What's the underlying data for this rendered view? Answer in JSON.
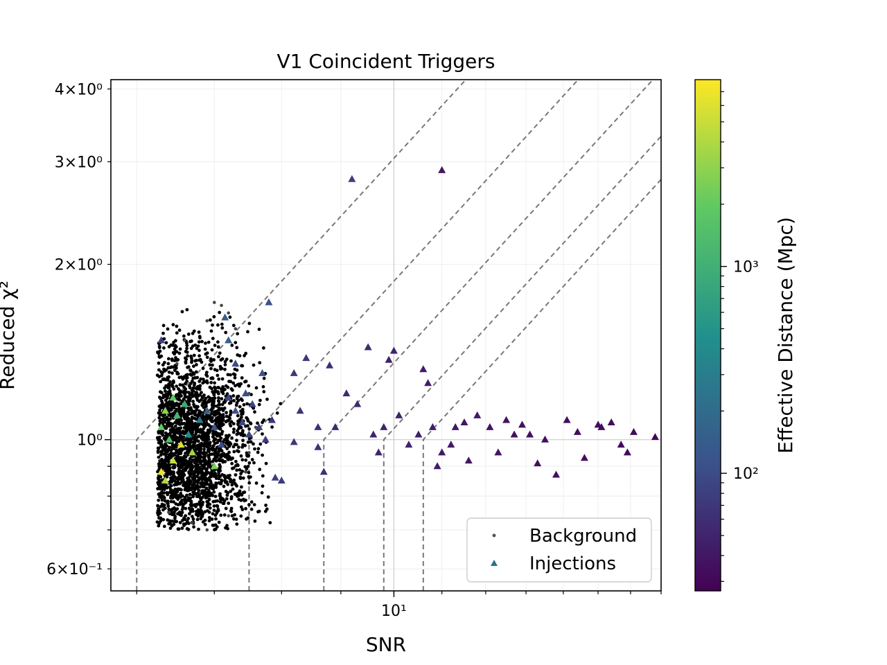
{
  "chart_data": {
    "type": "scatter",
    "title": "V1 Coincident Triggers",
    "xlabel": "SNR",
    "ylabel": "Reduced χ²",
    "xscale": "log",
    "yscale": "log",
    "xlim": [
      5.7,
      17.0
    ],
    "ylim": [
      0.55,
      4.15
    ],
    "grid": true,
    "x_ticks": [
      {
        "value": 10,
        "label": "10¹"
      }
    ],
    "y_ticks": [
      {
        "value": 0.6,
        "label": "6×10⁻¹"
      },
      {
        "value": 1,
        "label": "10⁰"
      },
      {
        "value": 2,
        "label": "2×10⁰"
      },
      {
        "value": 3,
        "label": "3×10⁰"
      },
      {
        "value": 4,
        "label": "4×10⁰"
      }
    ],
    "colorbar": {
      "label": "Effective Distance (Mpc)",
      "scale": "log",
      "range": [
        27,
        8000
      ],
      "colormap": "viridis",
      "ticks": [
        {
          "value": 100,
          "label": "10²"
        },
        {
          "value": 1000,
          "label": "10³"
        }
      ]
    },
    "legend": {
      "position": "lower-right",
      "entries": [
        {
          "label": "Background",
          "marker": "dot"
        },
        {
          "label": "Injections",
          "marker": "triangle"
        }
      ]
    },
    "contours": {
      "style": "dashed",
      "color": "#777777",
      "threshold_snr": [
        6,
        7.5,
        8.7,
        9.8,
        10.6
      ]
    },
    "series": [
      {
        "name": "Background",
        "marker": "dot",
        "color": "#000000",
        "region": {
          "snr_range": [
            6.25,
            7.6
          ],
          "chisq_range": [
            0.7,
            1.75
          ]
        },
        "points": [
          [
            6.5,
            1.35
          ],
          [
            6.6,
            1.48
          ],
          [
            6.9,
            1.6
          ],
          [
            7.0,
            1.72
          ],
          [
            7.1,
            1.7
          ],
          [
            7.2,
            1.65
          ],
          [
            7.3,
            1.55
          ],
          [
            7.5,
            1.2
          ],
          [
            7.5,
            0.95
          ],
          [
            7.45,
            0.88
          ],
          [
            7.6,
            1.05
          ],
          [
            6.7,
            0.72
          ],
          [
            6.9,
            0.7
          ],
          [
            6.4,
            0.75
          ],
          [
            7.2,
            0.74
          ]
        ]
      },
      {
        "name": "Injections",
        "marker": "triangle",
        "color_by": "effective_distance",
        "points": [
          [
            6.3,
            1.48,
            80
          ],
          [
            6.3,
            1.05,
            2000
          ],
          [
            6.35,
            1.12,
            3000
          ],
          [
            6.4,
            1.0,
            1500
          ],
          [
            6.45,
            0.92,
            5000
          ],
          [
            6.3,
            0.88,
            7000
          ],
          [
            6.35,
            0.85,
            4000
          ],
          [
            6.5,
            1.1,
            1200
          ],
          [
            6.55,
            0.98,
            6000
          ],
          [
            6.6,
            1.15,
            900
          ],
          [
            6.65,
            1.02,
            400
          ],
          [
            6.7,
            0.95,
            3500
          ],
          [
            6.8,
            1.08,
            250
          ],
          [
            6.9,
            1.12,
            150
          ],
          [
            7.0,
            1.05,
            120
          ],
          [
            7.1,
            0.98,
            100
          ],
          [
            7.2,
            1.18,
            90
          ],
          [
            7.3,
            1.12,
            110
          ],
          [
            7.4,
            1.07,
            95
          ],
          [
            7.5,
            1.02,
            85
          ],
          [
            7.2,
            1.48,
            150
          ],
          [
            7.15,
            1.62,
            140
          ],
          [
            7.8,
            1.72,
            120
          ],
          [
            7.7,
            1.3,
            110
          ],
          [
            7.3,
            1.35,
            100
          ],
          [
            7.45,
            1.2,
            105
          ],
          [
            7.55,
            1.15,
            90
          ],
          [
            7.65,
            1.05,
            80
          ],
          [
            7.75,
            1.0,
            75
          ],
          [
            7.85,
            1.08,
            70
          ],
          [
            7.9,
            0.86,
            80
          ],
          [
            8.0,
            0.85,
            75
          ],
          [
            8.2,
            0.99,
            70
          ],
          [
            8.3,
            1.12,
            65
          ],
          [
            8.2,
            1.3,
            70
          ],
          [
            8.4,
            1.38,
            70
          ],
          [
            9.2,
            2.8,
            80
          ],
          [
            8.6,
            1.05,
            60
          ],
          [
            8.8,
            1.34,
            60
          ],
          [
            8.7,
            0.88,
            60
          ],
          [
            8.6,
            0.97,
            65
          ],
          [
            8.9,
            1.05,
            55
          ],
          [
            9.1,
            1.2,
            55
          ],
          [
            9.3,
            1.15,
            55
          ],
          [
            9.5,
            1.44,
            55
          ],
          [
            9.6,
            1.02,
            50
          ],
          [
            9.7,
            0.95,
            50
          ],
          [
            9.8,
            1.05,
            48
          ],
          [
            9.9,
            1.37,
            48
          ],
          [
            10.0,
            1.42,
            48
          ],
          [
            10.1,
            1.1,
            50
          ],
          [
            10.3,
            0.98,
            50
          ],
          [
            10.5,
            1.02,
            45
          ],
          [
            10.6,
            1.32,
            45
          ],
          [
            10.7,
            1.25,
            45
          ],
          [
            10.8,
            1.05,
            45
          ],
          [
            10.9,
            0.9,
            45
          ],
          [
            11.0,
            0.95,
            42
          ],
          [
            11.2,
            0.98,
            42
          ],
          [
            11.0,
            2.9,
            40
          ],
          [
            11.3,
            1.05,
            42
          ],
          [
            11.5,
            1.07,
            40
          ],
          [
            11.6,
            0.92,
            40
          ],
          [
            11.8,
            1.1,
            40
          ],
          [
            12.1,
            1.05,
            38
          ],
          [
            12.3,
            0.95,
            38
          ],
          [
            12.5,
            1.08,
            38
          ],
          [
            12.7,
            1.02,
            36
          ],
          [
            12.9,
            1.06,
            36
          ],
          [
            13.1,
            1.02,
            36
          ],
          [
            13.3,
            0.91,
            35
          ],
          [
            13.5,
            1.0,
            35
          ],
          [
            13.8,
            0.87,
            35
          ],
          [
            14.1,
            1.08,
            34
          ],
          [
            14.4,
            1.03,
            34
          ],
          [
            14.6,
            0.93,
            34
          ],
          [
            15.0,
            1.06,
            33
          ],
          [
            15.1,
            1.05,
            33
          ],
          [
            15.4,
            1.07,
            33
          ],
          [
            15.7,
            0.98,
            32
          ],
          [
            15.9,
            0.95,
            32
          ],
          [
            16.1,
            1.03,
            32
          ],
          [
            16.8,
            1.01,
            30
          ],
          [
            7.0,
            0.9,
            2500
          ],
          [
            6.45,
            1.18,
            1800
          ]
        ]
      }
    ]
  }
}
